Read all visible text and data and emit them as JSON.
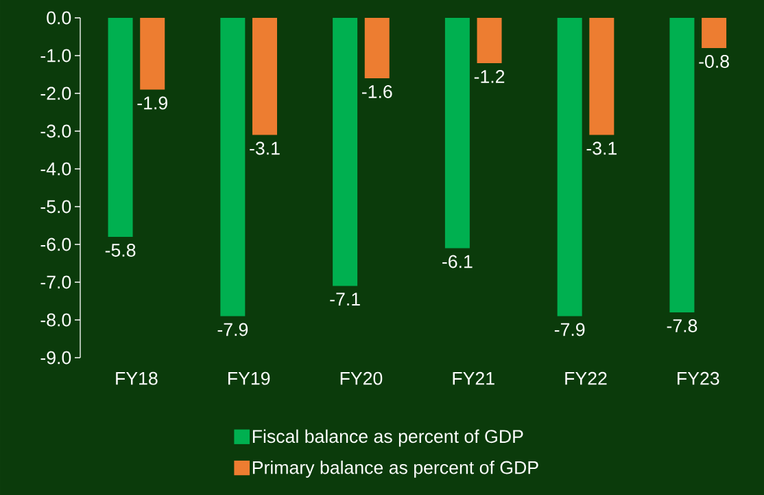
{
  "chart_data": {
    "type": "bar",
    "categories": [
      "FY18",
      "FY19",
      "FY20",
      "FY21",
      "FY22",
      "FY23"
    ],
    "series": [
      {
        "name": "Fiscal balance as percent of GDP",
        "color": "#00b050",
        "values": [
          -5.8,
          -7.9,
          -7.1,
          -6.1,
          -7.9,
          -7.8
        ]
      },
      {
        "name": "Primary balance as percent of GDP",
        "color": "#ed7d31",
        "values": [
          -1.9,
          -3.1,
          -1.6,
          -1.2,
          -3.1,
          -0.8
        ]
      }
    ],
    "ylim": [
      -9,
      0
    ],
    "yticks": [
      {
        "value": -9,
        "label": "-9.0"
      },
      {
        "value": -8,
        "label": "-8.0"
      },
      {
        "value": -7,
        "label": "-7.0"
      },
      {
        "value": -6,
        "label": "-6.0"
      },
      {
        "value": -5,
        "label": "-5.0"
      },
      {
        "value": -4,
        "label": "-4.0"
      },
      {
        "value": -3,
        "label": "-3.0"
      },
      {
        "value": -2,
        "label": "-2.0"
      },
      {
        "value": -1,
        "label": "-1.0"
      },
      {
        "value": 0,
        "label": "0.0"
      }
    ],
    "data_labels": true,
    "grid": false,
    "legend": "bottom"
  }
}
